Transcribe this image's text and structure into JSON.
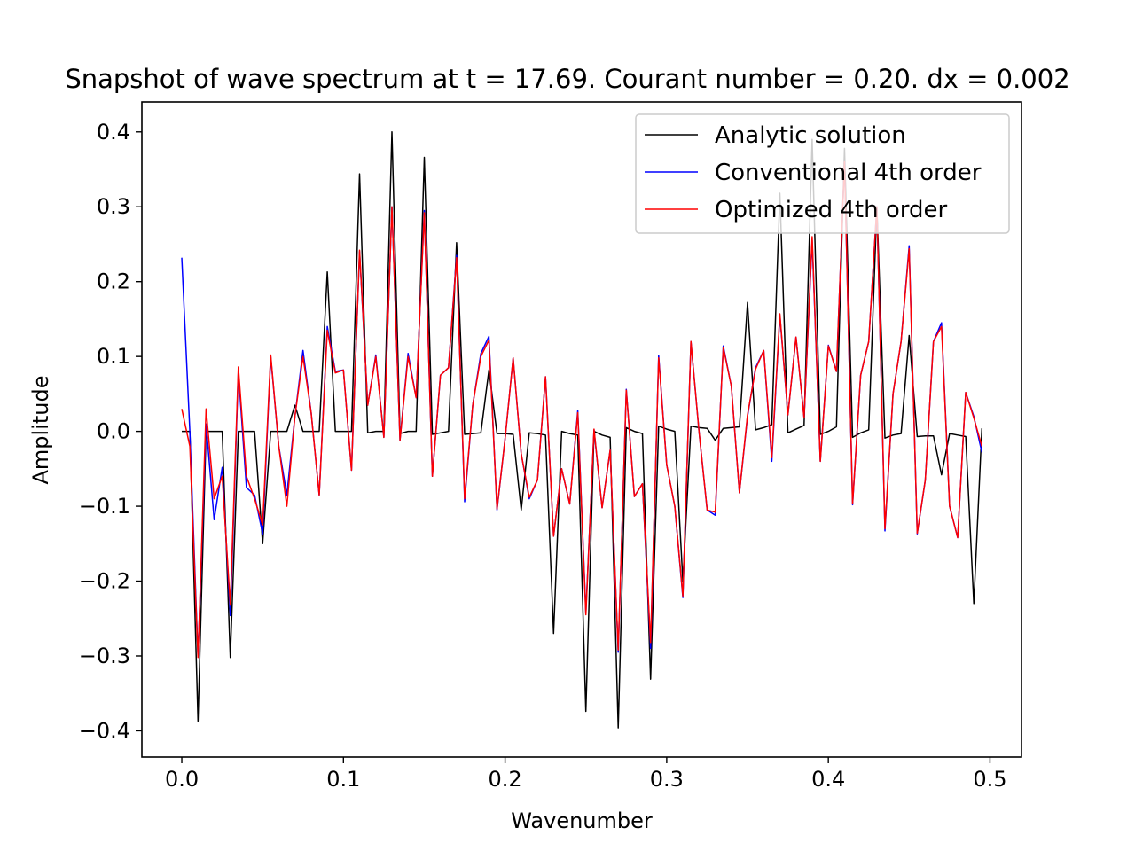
{
  "chart_data": {
    "type": "line",
    "title": "Snapshot of wave spectrum at t = 17.69. Courant number = 0.20. dx = 0.002",
    "xlabel": "Wavenumber",
    "ylabel": "Amplitude",
    "xlim": [
      -0.0247,
      0.5195
    ],
    "ylim": [
      -0.435,
      0.44
    ],
    "xticks": [
      0.0,
      0.1,
      0.2,
      0.3,
      0.4,
      0.5
    ],
    "xtick_labels": [
      "0.0",
      "0.1",
      "0.2",
      "0.3",
      "0.4",
      "0.5"
    ],
    "yticks": [
      0.4,
      0.3,
      0.2,
      0.1,
      0.0,
      -0.1,
      -0.2,
      -0.3,
      -0.4
    ],
    "ytick_labels": [
      "0.4",
      "0.3",
      "0.2",
      "0.1",
      "0.0",
      "−0.1",
      "−0.2",
      "−0.3",
      "−0.4"
    ],
    "grid": false,
    "legend_position": "top-right",
    "x": [
      0.0,
      0.005,
      0.01,
      0.015,
      0.02,
      0.025,
      0.03,
      0.035,
      0.04,
      0.045,
      0.05,
      0.055,
      0.06,
      0.065,
      0.07,
      0.075,
      0.08,
      0.085,
      0.09,
      0.095,
      0.1,
      0.105,
      0.11,
      0.115,
      0.12,
      0.125,
      0.13,
      0.135,
      0.14,
      0.145,
      0.15,
      0.155,
      0.16,
      0.165,
      0.17,
      0.175,
      0.18,
      0.185,
      0.19,
      0.195,
      0.2,
      0.205,
      0.21,
      0.215,
      0.22,
      0.225,
      0.23,
      0.235,
      0.24,
      0.245,
      0.25,
      0.255,
      0.26,
      0.265,
      0.27,
      0.275,
      0.28,
      0.285,
      0.29,
      0.295,
      0.3,
      0.305,
      0.31,
      0.315,
      0.32,
      0.325,
      0.33,
      0.335,
      0.34,
      0.345,
      0.35,
      0.355,
      0.36,
      0.365,
      0.37,
      0.375,
      0.38,
      0.385,
      0.39,
      0.395,
      0.4,
      0.405,
      0.41,
      0.415,
      0.42,
      0.425,
      0.43,
      0.435,
      0.44,
      0.445,
      0.45,
      0.455,
      0.46,
      0.465,
      0.47,
      0.475,
      0.48,
      0.485,
      0.49,
      0.495
    ],
    "series": [
      {
        "name": "Analytic solution",
        "color": "#000000",
        "values": [
          0.0,
          0.0,
          -0.387,
          0.0,
          0.0,
          0.0,
          -0.302,
          0.0,
          0.0,
          0.0,
          -0.15,
          0.0,
          0.0,
          0.0,
          0.035,
          0.0,
          0.0,
          0.0,
          0.213,
          0.0,
          0.0,
          0.0,
          0.344,
          -0.002,
          0.0,
          0.0,
          0.4,
          -0.003,
          0.0,
          0.0,
          0.366,
          -0.004,
          -0.002,
          0.0,
          0.252,
          -0.004,
          -0.003,
          -0.002,
          0.082,
          -0.003,
          -0.003,
          -0.004,
          -0.105,
          -0.002,
          -0.003,
          -0.005,
          -0.27,
          0.0,
          -0.003,
          -0.005,
          -0.374,
          0.0,
          -0.005,
          -0.008,
          -0.396,
          0.005,
          0.0,
          -0.003,
          -0.331,
          0.007,
          0.003,
          0.0,
          -0.2,
          0.007,
          0.005,
          0.004,
          -0.012,
          0.004,
          0.005,
          0.006,
          0.172,
          0.002,
          0.005,
          0.009,
          0.318,
          -0.002,
          0.003,
          0.008,
          0.39,
          -0.004,
          0.0,
          0.006,
          0.378,
          -0.008,
          -0.002,
          0.002,
          0.3,
          -0.009,
          -0.005,
          -0.003,
          0.128,
          -0.007,
          -0.006,
          -0.006,
          -0.058,
          -0.003,
          -0.005,
          -0.007,
          -0.23,
          0.004
        ]
      },
      {
        "name": "Conventional 4th order",
        "color": "#0000ff",
        "values": [
          0.232,
          0.0,
          -0.3,
          0.01,
          -0.118,
          -0.048,
          -0.246,
          0.08,
          -0.075,
          -0.085,
          -0.137,
          0.1,
          -0.02,
          -0.085,
          0.02,
          0.108,
          0.025,
          -0.085,
          0.14,
          0.08,
          0.082,
          -0.052,
          0.24,
          0.035,
          0.102,
          -0.008,
          0.3,
          -0.012,
          0.104,
          0.045,
          0.295,
          -0.06,
          0.075,
          0.085,
          0.235,
          -0.094,
          0.035,
          0.104,
          0.127,
          -0.105,
          -0.01,
          0.098,
          -0.03,
          -0.09,
          -0.065,
          0.073,
          -0.14,
          -0.05,
          -0.097,
          0.028,
          -0.242,
          0.002,
          -0.102,
          -0.025,
          -0.295,
          0.056,
          -0.087,
          -0.07,
          -0.29,
          0.101,
          -0.045,
          -0.1,
          -0.222,
          0.12,
          0.0,
          -0.105,
          -0.112,
          0.114,
          0.06,
          -0.082,
          0.02,
          0.085,
          0.108,
          -0.04,
          0.155,
          0.022,
          0.126,
          0.018,
          0.255,
          -0.04,
          0.115,
          0.08,
          0.36,
          -0.098,
          0.075,
          0.12,
          0.3,
          -0.133,
          0.05,
          0.12,
          0.248,
          -0.137,
          -0.065,
          0.12,
          0.145,
          -0.1,
          -0.142,
          0.052,
          0.02,
          -0.028
        ]
      },
      {
        "name": "Optimized 4th order",
        "color": "#ff0000",
        "values": [
          0.03,
          -0.02,
          -0.302,
          0.03,
          -0.09,
          -0.06,
          -0.232,
          0.086,
          -0.06,
          -0.09,
          -0.125,
          0.102,
          -0.02,
          -0.1,
          0.02,
          0.1,
          0.025,
          -0.085,
          0.135,
          0.078,
          0.082,
          -0.052,
          0.242,
          0.035,
          0.1,
          -0.008,
          0.3,
          -0.012,
          0.1,
          0.045,
          0.292,
          -0.06,
          0.075,
          0.085,
          0.232,
          -0.09,
          0.035,
          0.1,
          0.122,
          -0.104,
          -0.01,
          0.098,
          -0.03,
          -0.088,
          -0.065,
          0.073,
          -0.14,
          -0.05,
          -0.097,
          0.025,
          -0.245,
          0.003,
          -0.102,
          -0.025,
          -0.292,
          0.055,
          -0.087,
          -0.07,
          -0.282,
          0.098,
          -0.045,
          -0.1,
          -0.22,
          0.12,
          0.0,
          -0.105,
          -0.108,
          0.112,
          0.06,
          -0.082,
          0.022,
          0.083,
          0.108,
          -0.035,
          0.157,
          0.022,
          0.126,
          0.018,
          0.26,
          -0.04,
          0.114,
          0.08,
          0.36,
          -0.097,
          0.075,
          0.12,
          0.3,
          -0.13,
          0.05,
          0.12,
          0.244,
          -0.136,
          -0.065,
          0.12,
          0.14,
          -0.1,
          -0.142,
          0.052,
          0.018,
          -0.02
        ]
      }
    ]
  }
}
